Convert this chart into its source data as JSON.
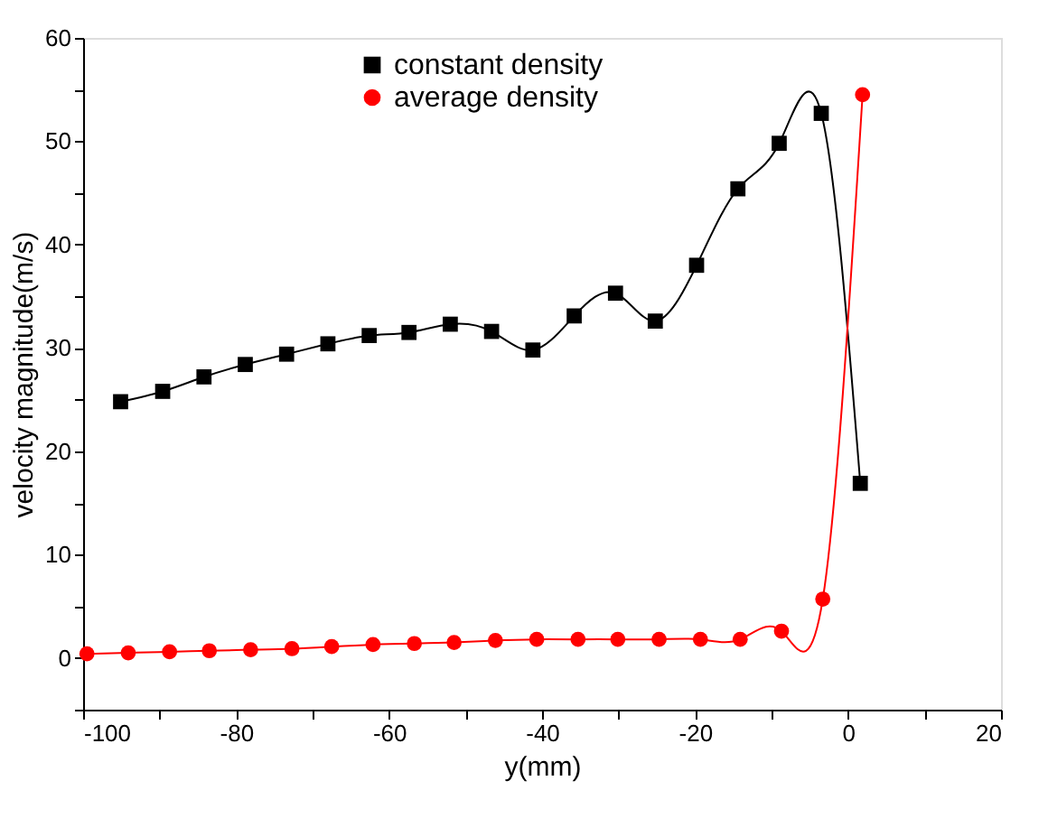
{
  "chart_data": {
    "type": "line",
    "xlabel": "y(mm)",
    "ylabel": "velocity magnitude(m/s)",
    "xlim": [
      -100,
      20
    ],
    "ylim": [
      -5,
      60
    ],
    "xticks": [
      -100,
      {
        "value": -90,
        "label": null
      },
      -80,
      {
        "value": -70,
        "label": null
      },
      -60,
      {
        "value": -50,
        "label": null
      },
      -40,
      {
        "value": -30,
        "label": null
      },
      -20,
      {
        "value": -10,
        "label": null
      },
      0,
      {
        "value": 10,
        "label": null
      },
      20
    ],
    "yticks": [
      {
        "value": -5,
        "label": null
      },
      0,
      {
        "value": 5,
        "label": null
      },
      10,
      {
        "value": 15,
        "label": null
      },
      20,
      {
        "value": 25,
        "label": null
      },
      30,
      {
        "value": 35,
        "label": null
      },
      40,
      {
        "value": 45,
        "label": null
      },
      50,
      {
        "value": 55,
        "label": null
      },
      60
    ],
    "grid": false,
    "legend": "top",
    "line_style": "solid",
    "series": [
      {
        "name": "constant density",
        "color": "#000000",
        "marker": "square",
        "x": [
          -95.1,
          -89.6,
          -84.2,
          -78.8,
          -73.4,
          -68,
          -62.6,
          -57.4,
          -52,
          -46.6,
          -41.2,
          -35.8,
          -30.4,
          -25.2,
          -19.8,
          -14.4,
          -9,
          -3.5,
          1.6
        ],
        "values": [
          24.8,
          25.8,
          27.2,
          28.4,
          29.4,
          30.4,
          31.2,
          31.5,
          32.3,
          31.6,
          29.8,
          33.1,
          35.3,
          32.6,
          38.0,
          45.4,
          49.8,
          52.7,
          16.9
        ]
      },
      {
        "name": "average density",
        "color": "#ff0000",
        "marker": "circle",
        "x": [
          -99.5,
          -94.1,
          -88.7,
          -83.5,
          -78.1,
          -72.7,
          -67.5,
          -62.1,
          -56.7,
          -51.5,
          -46.1,
          -40.7,
          -35.3,
          -30.1,
          -24.7,
          -19.3,
          -14.1,
          -8.7,
          -3.3,
          1.9
        ],
        "values": [
          0.4,
          0.5,
          0.6,
          0.7,
          0.8,
          0.9,
          1.1,
          1.3,
          1.4,
          1.5,
          1.7,
          1.8,
          1.8,
          1.8,
          1.8,
          1.8,
          1.8,
          2.6,
          5.7,
          54.5
        ]
      }
    ]
  }
}
